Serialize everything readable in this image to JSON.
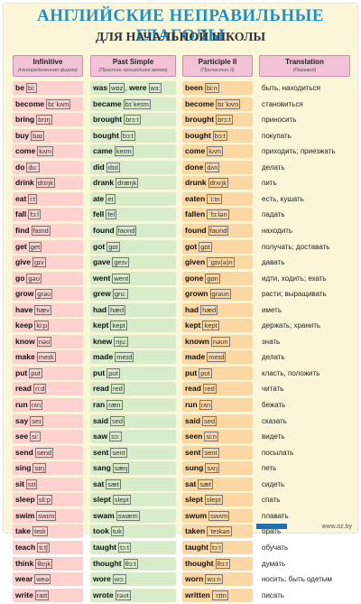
{
  "title": "АНГЛИЙСКИЕ НЕПРАВИЛЬНЫЕ ГЛАГОЛЫ",
  "subtitle": "ДЛЯ НАЧАЛЬНОЙ ШКОЛЫ",
  "headers": [
    {
      "label": "Infinitive",
      "sub": "(Неопределенная форма)"
    },
    {
      "label": "Past Simple",
      "sub": "(Простое прошедшее время)"
    },
    {
      "label": "Participle II",
      "sub": "(Причастие II)"
    },
    {
      "label": "Translation",
      "sub": "(Перевод)"
    }
  ],
  "rows": [
    {
      "inf": "be",
      "inf_tr": "bi:",
      "past": "was",
      "past_tr": "wɒz",
      "past2": "were",
      "past2_tr": "wɜ:",
      "part": "been",
      "part_tr": "bi:n",
      "ru": "быть, находиться"
    },
    {
      "inf": "become",
      "inf_tr": "bɪˈkʌm",
      "past": "became",
      "past_tr": "bɪˈkeɪm",
      "part": "become",
      "part_tr": "bɪˈkʌm",
      "ru": "становиться"
    },
    {
      "inf": "bring",
      "inf_tr": "brɪŋ",
      "past": "brought",
      "past_tr": "brɔ:t",
      "part": "brought",
      "part_tr": "brɔ:t",
      "ru": "приносить"
    },
    {
      "inf": "buy",
      "inf_tr": "baɪ",
      "past": "bought",
      "past_tr": "bɔ:t",
      "part": "bought",
      "part_tr": "bɔ:t",
      "ru": "покупать"
    },
    {
      "inf": "come",
      "inf_tr": "kʌm",
      "past": "came",
      "past_tr": "keɪm",
      "part": "come",
      "part_tr": "kʌm",
      "ru": "приходить; приезжать"
    },
    {
      "inf": "do",
      "inf_tr": "du:",
      "past": "did",
      "past_tr": "dɪd",
      "part": "done",
      "part_tr": "dʌn",
      "ru": "делать"
    },
    {
      "inf": "drink",
      "inf_tr": "drɪŋk",
      "past": "drank",
      "past_tr": "dræŋk",
      "part": "drunk",
      "part_tr": "drʌŋk",
      "ru": "пить"
    },
    {
      "inf": "eat",
      "inf_tr": "i:t",
      "past": "ate",
      "past_tr": "et",
      "part": "eaten",
      "part_tr": "ˈi:tn",
      "ru": "есть, кушать"
    },
    {
      "inf": "fall",
      "inf_tr": "fɔ:l",
      "past": "fell",
      "past_tr": "fel",
      "part": "fallen",
      "part_tr": "ˈfɔ:lən",
      "ru": "падать"
    },
    {
      "inf": "find",
      "inf_tr": "faɪnd",
      "past": "found",
      "past_tr": "faʊnd",
      "part": "found",
      "part_tr": "faʊnd",
      "ru": "находить"
    },
    {
      "inf": "get",
      "inf_tr": "get",
      "past": "got",
      "past_tr": "gɒt",
      "part": "got",
      "part_tr": "gɒt",
      "ru": "получать; доставать"
    },
    {
      "inf": "give",
      "inf_tr": "gɪv",
      "past": "gave",
      "past_tr": "geɪv",
      "part": "given",
      "part_tr": "ˈgɪv(ə)n",
      "ru": "давать"
    },
    {
      "inf": "go",
      "inf_tr": "gəʊ",
      "past": "went",
      "past_tr": "went",
      "part": "gone",
      "part_tr": "gɒn",
      "ru": "идти, ходить; ехать"
    },
    {
      "inf": "grow",
      "inf_tr": "grəʊ",
      "past": "grew",
      "past_tr": "gru:",
      "part": "grown",
      "part_tr": "grəʊn",
      "ru": "расти; выращивать"
    },
    {
      "inf": "have",
      "inf_tr": "hæv",
      "past": "had",
      "past_tr": "hæd",
      "part": "had",
      "part_tr": "hæd",
      "ru": "иметь"
    },
    {
      "inf": "keep",
      "inf_tr": "ki:p",
      "past": "kept",
      "past_tr": "kept",
      "part": "kept",
      "part_tr": "kept",
      "ru": "держать; хранить"
    },
    {
      "inf": "know",
      "inf_tr": "nəʊ",
      "past": "knew",
      "past_tr": "nju:",
      "part": "known",
      "part_tr": "nəʊn",
      "ru": "знать"
    },
    {
      "inf": "make",
      "inf_tr": "meɪk",
      "past": "made",
      "past_tr": "meɪd",
      "part": "made",
      "part_tr": "meɪd",
      "ru": "делать"
    },
    {
      "inf": "put",
      "inf_tr": "pʊt",
      "past": "put",
      "past_tr": "pʊt",
      "part": "put",
      "part_tr": "pʊt",
      "ru": "класть, положить"
    },
    {
      "inf": "read",
      "inf_tr": "ri:d",
      "past": "read",
      "past_tr": "red",
      "part": "read",
      "part_tr": "red",
      "ru": "читать"
    },
    {
      "inf": "run",
      "inf_tr": "rʌn",
      "past": "ran",
      "past_tr": "ræn",
      "part": "run",
      "part_tr": "rʌn",
      "ru": "бежать"
    },
    {
      "inf": "say",
      "inf_tr": "seɪ",
      "past": "said",
      "past_tr": "sed",
      "part": "said",
      "part_tr": "sed",
      "ru": "сказать"
    },
    {
      "inf": "see",
      "inf_tr": "si:",
      "past": "saw",
      "past_tr": "sɔ:",
      "part": "seen",
      "part_tr": "si:n",
      "ru": "видеть"
    },
    {
      "inf": "send",
      "inf_tr": "send",
      "past": "sent",
      "past_tr": "sent",
      "part": "sent",
      "part_tr": "sent",
      "ru": "посылать"
    },
    {
      "inf": "sing",
      "inf_tr": "sɪŋ",
      "past": "sang",
      "past_tr": "sæŋ",
      "part": "sung",
      "part_tr": "sʌŋ",
      "ru": "петь"
    },
    {
      "inf": "sit",
      "inf_tr": "sɪt",
      "past": "sat",
      "past_tr": "sæt",
      "part": "sat",
      "part_tr": "sæt",
      "ru": "сидеть"
    },
    {
      "inf": "sleep",
      "inf_tr": "sli:p",
      "past": "slept",
      "past_tr": "slept",
      "part": "slept",
      "part_tr": "slept",
      "ru": "спать"
    },
    {
      "inf": "swim",
      "inf_tr": "swɪm",
      "past": "swam",
      "past_tr": "swæm",
      "part": "swum",
      "part_tr": "swʌm",
      "ru": "плавать"
    },
    {
      "inf": "take",
      "inf_tr": "teɪk",
      "past": "took",
      "past_tr": "tʊk",
      "part": "taken",
      "part_tr": "ˈteɪkən",
      "ru": "брать"
    },
    {
      "inf": "teach",
      "inf_tr": "ti:tʃ",
      "past": "taught",
      "past_tr": "tɔ:t",
      "part": "taught",
      "part_tr": "tɔ:t",
      "ru": "обучать"
    },
    {
      "inf": "think",
      "inf_tr": "θɪŋk",
      "past": "thought",
      "past_tr": "θɔ:t",
      "part": "thought",
      "part_tr": "θɔ:t",
      "ru": "думать"
    },
    {
      "inf": "wear",
      "inf_tr": "weə",
      "past": "wore",
      "past_tr": "wɔ:",
      "part": "worn",
      "part_tr": "wɔ:n",
      "ru": "носить; быть одетым"
    },
    {
      "inf": "write",
      "inf_tr": "raɪt",
      "past": "wrote",
      "past_tr": "rəʊt",
      "part": "written",
      "part_tr": "ˈrɪtn",
      "ru": "писать"
    }
  ],
  "footer": "www.oz.by",
  "colors": {
    "title": "#1f8fc4",
    "infinitive": "#fcd1ce",
    "past": "#d9ecca",
    "participle": "#fbd7a3",
    "header": "#f2c2d6",
    "background": "#fbf6d8"
  }
}
